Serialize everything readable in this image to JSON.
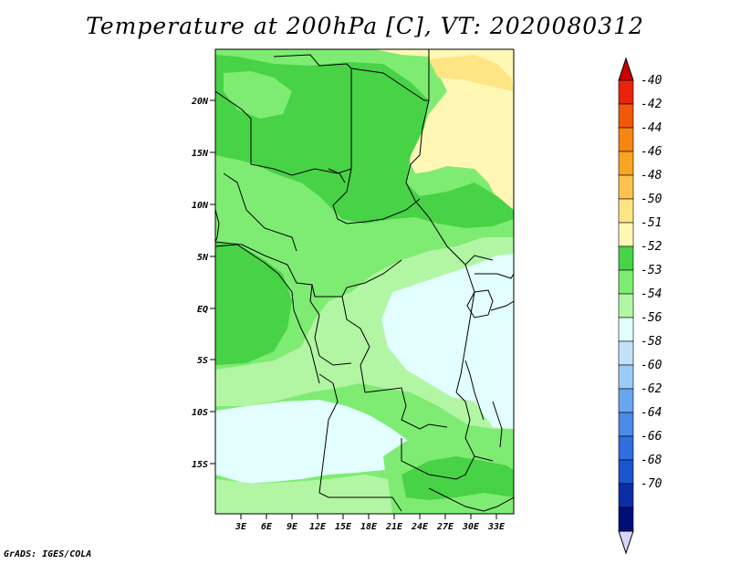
{
  "title": "Temperature at 200hPa [C], VT: 2020080312",
  "footer": "GrADS: IGES/COLA",
  "map": {
    "lat_labels": [
      "20N",
      "15N",
      "10N",
      "5N",
      "EQ",
      "5S",
      "10S",
      "15S"
    ],
    "lon_labels": [
      "3E",
      "6E",
      "9E",
      "12E",
      "15E",
      "18E",
      "21E",
      "24E",
      "27E",
      "30E",
      "33E"
    ]
  },
  "colorbar": {
    "colors": [
      "#d6d6f5",
      "#000e7a",
      "#0a2ea8",
      "#1a55d0",
      "#2f6ee0",
      "#4a8ae8",
      "#6aa6f0",
      "#9ccaf7",
      "#c2e2fa",
      "#e2fefe",
      "#b2f6a4",
      "#7eec72",
      "#48d246",
      "#fef8b4",
      "#fde584",
      "#fbc34e",
      "#f9a520",
      "#f68512",
      "#f2570a",
      "#e8230a",
      "#c80000"
    ],
    "labels": [
      "-70",
      "-68",
      "-66",
      "-64",
      "-62",
      "-60",
      "-58",
      "-56",
      "-54",
      "-53",
      "-52",
      "-51",
      "-50",
      "-48",
      "-46",
      "-44",
      "-42",
      "-40"
    ],
    "zone_colors": {
      "very_light_green": "#b2f6a4",
      "medium_green": "#7eec72",
      "dark_green": "#48d246",
      "light_cyan": "#e2fefe",
      "pale_yellow": "#fef8b4",
      "light_yellow": "#fde584"
    }
  }
}
